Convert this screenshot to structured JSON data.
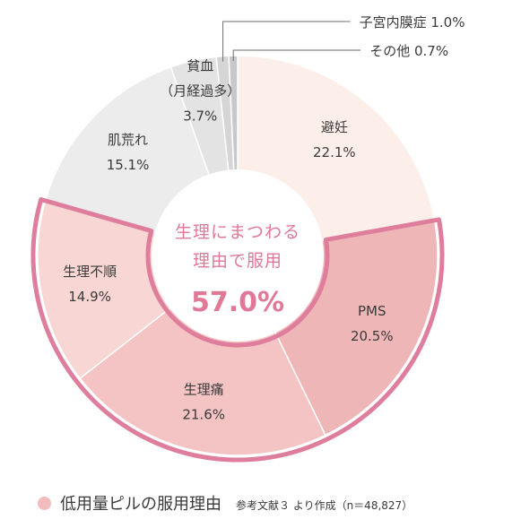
{
  "chart_data": {
    "type": "pie",
    "title": "",
    "center_label_lines": [
      "生理にまつわる",
      "理由で服用"
    ],
    "center_value": "57.0%",
    "slices": [
      {
        "label_lines": [
          "避妊"
        ],
        "value": 22.1,
        "value_text": "22.1%",
        "color": "#fcefea",
        "highlight": false
      },
      {
        "label_lines": [
          "PMS"
        ],
        "value": 20.5,
        "value_text": "20.5%",
        "color": "#efb6b7",
        "highlight": true
      },
      {
        "label_lines": [
          "生理痛"
        ],
        "value": 21.6,
        "value_text": "21.6%",
        "color": "#f4c4c5",
        "highlight": true
      },
      {
        "label_lines": [
          "生理不順"
        ],
        "value": 14.9,
        "value_text": "14.9%",
        "color": "#f8d6d4",
        "highlight": true
      },
      {
        "label_lines": [
          "肌荒れ"
        ],
        "value": 15.1,
        "value_text": "15.1%",
        "color": "#ececec",
        "highlight": false
      },
      {
        "label_lines": [
          "貧血",
          "（月経過多）"
        ],
        "value": 3.7,
        "value_text": "3.7%",
        "color": "#e3e3e3",
        "highlight": false
      },
      {
        "label_lines": [
          "子宮内膜症"
        ],
        "value": 1.0,
        "value_text": "1.0%",
        "color": "#d5d5d5",
        "highlight": false,
        "callout": true
      },
      {
        "label_lines": [
          "その他"
        ],
        "value": 0.7,
        "value_text": "0.7%",
        "color": "#c8c8c8",
        "highlight": false,
        "callout": true
      }
    ],
    "highlight_color": "#de7d9c",
    "legend": [
      {
        "label": "低用量ピルの服用理由",
        "color": "#f2bcbd"
      }
    ]
  },
  "footnote": "参考文献３ より作成（n＝48,827）"
}
